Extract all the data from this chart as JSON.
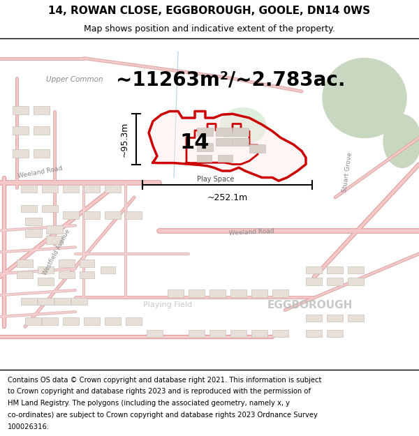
{
  "title_line1": "14, ROWAN CLOSE, EGGBOROUGH, GOOLE, DN14 0WS",
  "title_line2": "Map shows position and indicative extent of the property.",
  "area_text": "~11263m²/~2.783ac.",
  "width_label": "~252.1m",
  "height_label": "~95.3m",
  "plot_number": "14",
  "play_space_label": "Play Space",
  "playing_field_label": "Playing Field",
  "eggborough_label": "EGGBOROUGH",
  "upper_common_label": "Upper Common",
  "weeland_road_label": "Weeland Road",
  "westfield_avenue_label": "Westfield Avenue",
  "stuart_grove_label": "Stuart Grove",
  "footer_lines": [
    "Contains OS data © Crown copyright and database right 2021. This information is subject",
    "to Crown copyright and database rights 2023 and is reproduced with the permission of",
    "HM Land Registry. The polygons (including the associated geometry, namely x, y",
    "co-ordinates) are subject to Crown copyright and database rights 2023 Ordnance Survey",
    "100026316."
  ],
  "map_bg_color": "#ffffff",
  "highlight_color": "#cc0000",
  "green_area_color": "#c8d8c0",
  "figsize": [
    6.0,
    6.25
  ],
  "dpi": 100
}
